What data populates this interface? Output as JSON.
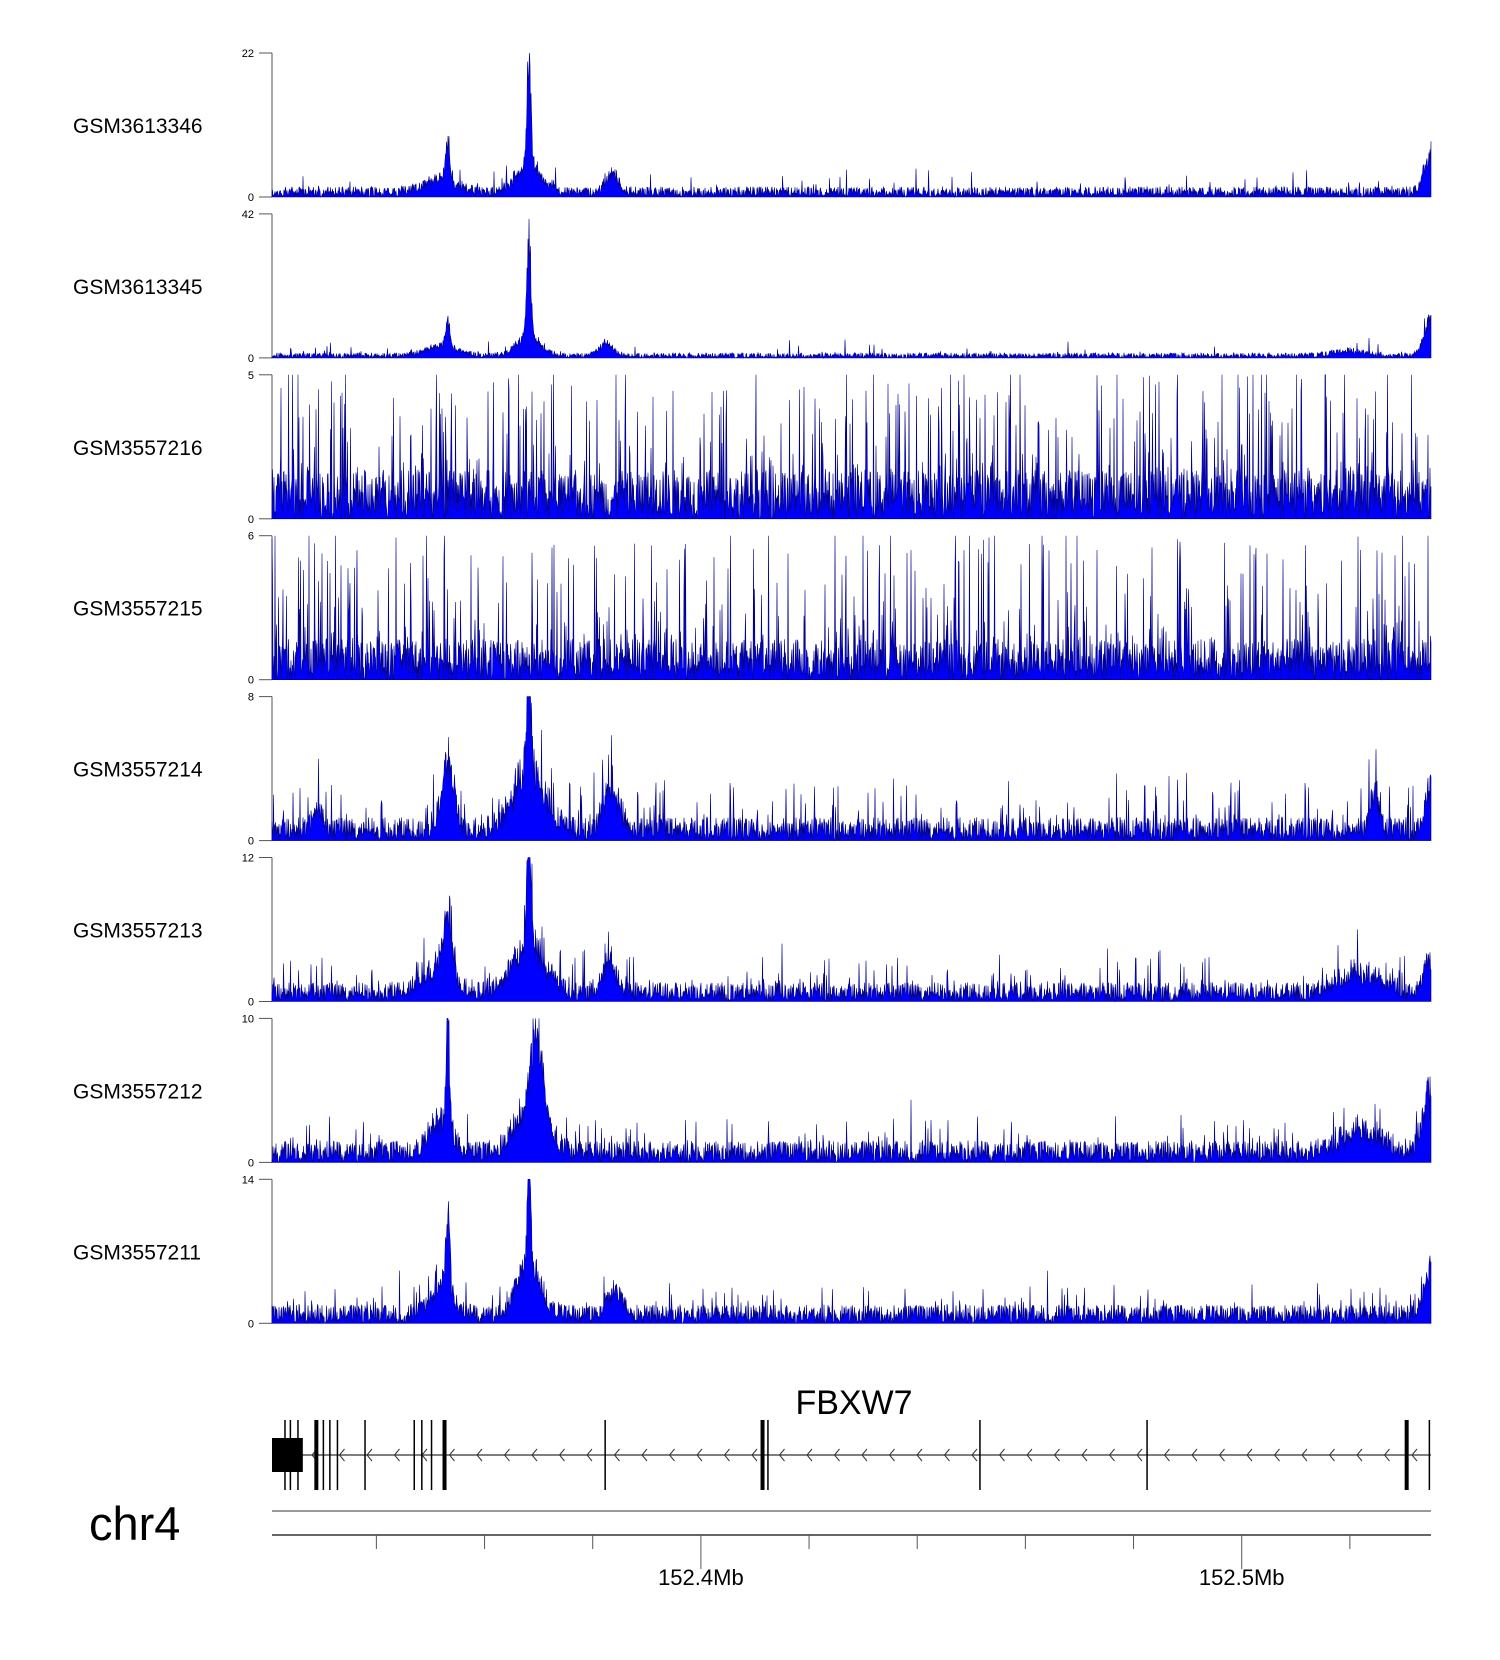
{
  "chart_data": {
    "type": "area",
    "title": "",
    "chromosome": "chr4",
    "xlabel": "",
    "xlim_mb": [
      152.3207,
      152.535
    ],
    "x_ticks_mb": [
      152.34,
      152.36,
      152.38,
      152.4,
      152.42,
      152.44,
      152.46,
      152.48,
      152.5,
      152.52
    ],
    "x_tick_labels": [
      {
        "mb": 152.4,
        "label": "152.4Mb"
      },
      {
        "mb": 152.5,
        "label": "152.5Mb"
      }
    ],
    "fill_color": "#0000ff",
    "stroke_color": "#00008b",
    "tracks": [
      {
        "name": "GSM3613346",
        "ymax": 22,
        "ymin_label": "0",
        "ymax_label": "22",
        "baseline": 1.6,
        "spike_rate": 0.03,
        "spike_max": 3.5,
        "peaks": [
          {
            "mb": 152.3532,
            "h": 8,
            "w": 0.0004
          },
          {
            "mb": 152.352,
            "h": 2.5,
            "w": 0.003
          },
          {
            "mb": 152.3682,
            "h": 22,
            "w": 0.00035
          },
          {
            "mb": 152.3682,
            "h": 5,
            "w": 0.0025
          },
          {
            "mb": 152.3835,
            "h": 3.5,
            "w": 0.0012
          },
          {
            "mb": 152.535,
            "h": 7,
            "w": 0.0012
          }
        ]
      },
      {
        "name": "GSM3613345",
        "ymax": 42,
        "ymin_label": "0",
        "ymax_label": "42",
        "baseline": 1.5,
        "spike_rate": 0.03,
        "spike_max": 4,
        "peaks": [
          {
            "mb": 152.3532,
            "h": 10,
            "w": 0.0004
          },
          {
            "mb": 152.352,
            "h": 3.5,
            "w": 0.003
          },
          {
            "mb": 152.3682,
            "h": 42,
            "w": 0.00035
          },
          {
            "mb": 152.3682,
            "h": 7,
            "w": 0.0022
          },
          {
            "mb": 152.3825,
            "h": 5,
            "w": 0.0012
          },
          {
            "mb": 152.535,
            "h": 14,
            "w": 0.0012
          },
          {
            "mb": 152.52,
            "h": 2,
            "w": 0.003
          }
        ]
      },
      {
        "name": "GSM3557216",
        "ymax": 5,
        "ymin_label": "0",
        "ymax_label": "5",
        "baseline": 1.7,
        "spike_rate": 0.22,
        "spike_max": 4.6,
        "peaks": []
      },
      {
        "name": "GSM3557215",
        "ymax": 6,
        "ymin_label": "0",
        "ymax_label": "6",
        "baseline": 1.7,
        "spike_rate": 0.22,
        "spike_max": 5.5,
        "peaks": []
      },
      {
        "name": "GSM3557214",
        "ymax": 8,
        "ymin_label": "0",
        "ymax_label": "8",
        "baseline": 1.3,
        "spike_rate": 0.1,
        "spike_max": 3,
        "peaks": [
          {
            "mb": 152.3532,
            "h": 4.5,
            "w": 0.0012
          },
          {
            "mb": 152.3682,
            "h": 8,
            "w": 0.0004
          },
          {
            "mb": 152.3682,
            "h": 4,
            "w": 0.003
          },
          {
            "mb": 152.3835,
            "h": 3,
            "w": 0.0015
          },
          {
            "mb": 152.329,
            "h": 1.5,
            "w": 0.001
          },
          {
            "mb": 152.5245,
            "h": 3,
            "w": 0.0008
          },
          {
            "mb": 152.535,
            "h": 3.5,
            "w": 0.001
          }
        ]
      },
      {
        "name": "GSM3557213",
        "ymax": 12,
        "ymin_label": "0",
        "ymax_label": "12",
        "baseline": 1.6,
        "spike_rate": 0.08,
        "spike_max": 3.5,
        "peaks": [
          {
            "mb": 152.3532,
            "h": 6.5,
            "w": 0.0008
          },
          {
            "mb": 152.351,
            "h": 2.5,
            "w": 0.003
          },
          {
            "mb": 152.3682,
            "h": 12,
            "w": 0.0004
          },
          {
            "mb": 152.3682,
            "h": 5,
            "w": 0.003
          },
          {
            "mb": 152.383,
            "h": 3,
            "w": 0.0015
          },
          {
            "mb": 152.535,
            "h": 4,
            "w": 0.0012
          },
          {
            "mb": 152.522,
            "h": 2,
            "w": 0.004
          }
        ]
      },
      {
        "name": "GSM3557212",
        "ymax": 10,
        "ymin_label": "0",
        "ymax_label": "10",
        "baseline": 1.5,
        "spike_rate": 0.08,
        "spike_max": 3,
        "peaks": [
          {
            "mb": 152.3532,
            "h": 10,
            "w": 0.0003
          },
          {
            "mb": 152.352,
            "h": 3,
            "w": 0.002
          },
          {
            "mb": 152.3697,
            "h": 7,
            "w": 0.0012
          },
          {
            "mb": 152.3685,
            "h": 3.5,
            "w": 0.003
          },
          {
            "mb": 152.535,
            "h": 5,
            "w": 0.0015
          },
          {
            "mb": 152.522,
            "h": 2,
            "w": 0.004
          }
        ]
      },
      {
        "name": "GSM3557211",
        "ymax": 14,
        "ymin_label": "0",
        "ymax_label": "14",
        "baseline": 1.8,
        "spike_rate": 0.08,
        "spike_max": 3.5,
        "peaks": [
          {
            "mb": 152.3532,
            "h": 9,
            "w": 0.0004
          },
          {
            "mb": 152.352,
            "h": 4,
            "w": 0.002
          },
          {
            "mb": 152.3682,
            "h": 14,
            "w": 0.0003
          },
          {
            "mb": 152.3682,
            "h": 6,
            "w": 0.0022
          },
          {
            "mb": 152.384,
            "h": 3,
            "w": 0.0015
          },
          {
            "mb": 152.535,
            "h": 6,
            "w": 0.0012
          }
        ]
      }
    ],
    "gene": {
      "name": "FBXW7",
      "strand": "-",
      "start_mb": 152.3207,
      "end_mb": 152.535,
      "utr_block_mb": [
        152.3207,
        152.3264
      ],
      "exons_mb": [
        {
          "mb": 152.3231,
          "thick": false
        },
        {
          "mb": 152.3241,
          "thick": false
        },
        {
          "mb": 152.3255,
          "thick": false
        },
        {
          "mb": 152.3289,
          "thick": true
        },
        {
          "mb": 152.3302,
          "thick": false
        },
        {
          "mb": 152.3314,
          "thick": false
        },
        {
          "mb": 152.3328,
          "thick": false
        },
        {
          "mb": 152.3379,
          "thick": false
        },
        {
          "mb": 152.347,
          "thick": false
        },
        {
          "mb": 152.3484,
          "thick": false
        },
        {
          "mb": 152.3502,
          "thick": false
        },
        {
          "mb": 152.3526,
          "thick": true
        },
        {
          "mb": 152.3823,
          "thick": false
        },
        {
          "mb": 152.4114,
          "thick": true
        },
        {
          "mb": 152.4124,
          "thick": false
        },
        {
          "mb": 152.4516,
          "thick": false
        },
        {
          "mb": 152.4825,
          "thick": false
        },
        {
          "mb": 152.5305,
          "thick": true
        },
        {
          "mb": 152.5347,
          "thick": false
        }
      ]
    }
  }
}
